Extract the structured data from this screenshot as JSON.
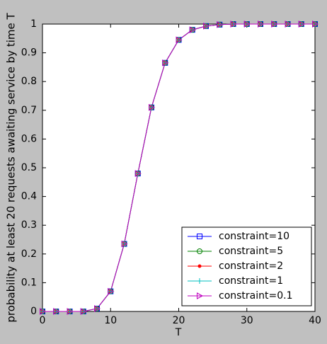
{
  "chart_data": {
    "type": "line",
    "x_label": "T",
    "y_label": "probability at least 20 requests awaiting service by time T",
    "x": [
      0,
      2,
      4,
      6,
      8,
      10,
      12,
      14,
      16,
      18,
      20,
      22,
      24,
      26,
      28,
      30,
      32,
      34,
      36,
      38,
      40
    ],
    "series": [
      {
        "name": "constraint=10",
        "color": "#0000ff",
        "marker": "square",
        "values": [
          0,
          0,
          0,
          0,
          0.01,
          0.07,
          0.235,
          0.48,
          0.71,
          0.865,
          0.945,
          0.98,
          0.993,
          0.998,
          1,
          1,
          1,
          1,
          1,
          1,
          1
        ]
      },
      {
        "name": "constraint=5",
        "color": "#008000",
        "marker": "circle",
        "values": [
          0,
          0,
          0,
          0,
          0.01,
          0.07,
          0.235,
          0.48,
          0.71,
          0.865,
          0.945,
          0.98,
          0.993,
          0.998,
          1,
          1,
          1,
          1,
          1,
          1,
          1
        ]
      },
      {
        "name": "constraint=2",
        "color": "#ff0000",
        "marker": "dot",
        "values": [
          0,
          0,
          0,
          0,
          0.01,
          0.07,
          0.235,
          0.48,
          0.71,
          0.865,
          0.945,
          0.98,
          0.993,
          0.998,
          1,
          1,
          1,
          1,
          1,
          1,
          1
        ]
      },
      {
        "name": "constraint=1",
        "color": "#00bfbf",
        "marker": "plus",
        "values": [
          0,
          0,
          0,
          0,
          0.01,
          0.07,
          0.235,
          0.48,
          0.71,
          0.865,
          0.945,
          0.98,
          0.993,
          0.998,
          1,
          1,
          1,
          1,
          1,
          1,
          1
        ]
      },
      {
        "name": "constraint=0.1",
        "color": "#bf00bf",
        "marker": "triangle-right",
        "values": [
          0,
          0,
          0,
          0,
          0.01,
          0.07,
          0.235,
          0.48,
          0.71,
          0.865,
          0.945,
          0.98,
          0.993,
          0.998,
          1,
          1,
          1,
          1,
          1,
          1,
          1
        ]
      }
    ],
    "xlim": [
      0,
      40
    ],
    "xticks": [
      0,
      10,
      20,
      30,
      40
    ],
    "ylim": [
      0,
      1
    ],
    "yticks": [
      0,
      0.1,
      0.2,
      0.3,
      0.4,
      0.5,
      0.6,
      0.7,
      0.8,
      0.9,
      1
    ],
    "grid": false,
    "legend": "lower right"
  }
}
